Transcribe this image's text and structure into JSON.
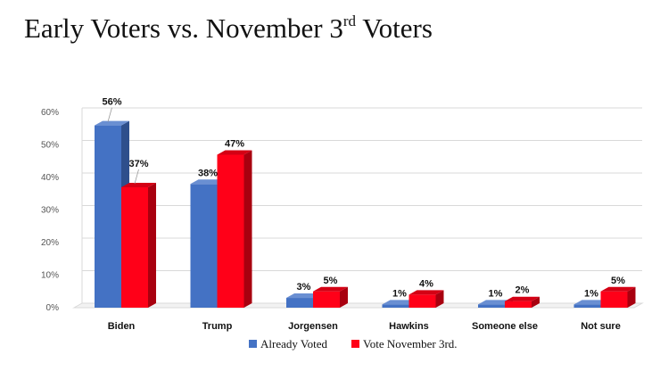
{
  "chart_data": {
    "type": "bar",
    "title_main": "Early Voters vs. November 3",
    "title_sup": "rd",
    "title_end": " Voters",
    "categories": [
      "Biden",
      "Trump",
      "Jorgensen",
      "Hawkins",
      "Someone else",
      "Not sure"
    ],
    "series": [
      {
        "name": "Already Voted",
        "values": [
          56,
          38,
          3,
          1,
          1,
          1
        ],
        "color": "#4472C4",
        "side": "#2E4F8C",
        "top": "#6A8FD2"
      },
      {
        "name": "Vote November 3rd.",
        "values": [
          37,
          47,
          5,
          4,
          2,
          5
        ],
        "color": "#FF0018",
        "side": "#A8000F",
        "top": "#D40014"
      }
    ],
    "yticks": [
      "0%",
      "10%",
      "20%",
      "30%",
      "40%",
      "50%",
      "60%"
    ],
    "ylim": [
      0,
      60
    ],
    "value_suffix": "%",
    "legend_position": "bottom",
    "grid": true
  }
}
